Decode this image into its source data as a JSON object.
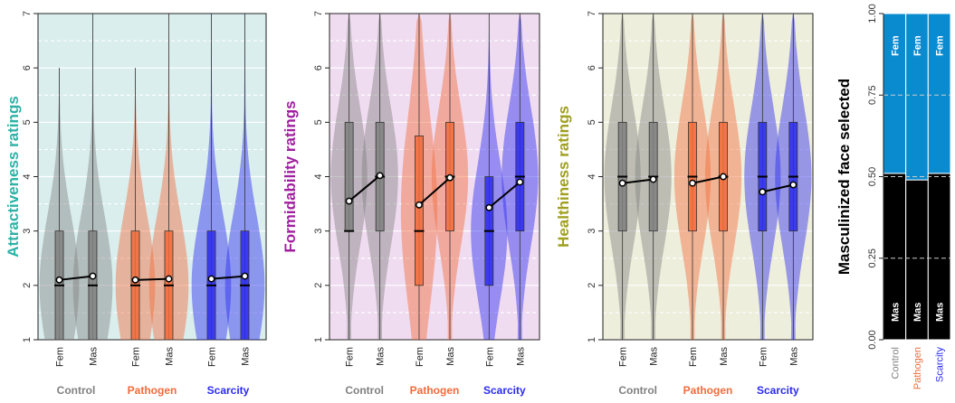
{
  "colors": {
    "control": "#808080",
    "pathogen": "#f26b3a",
    "scarcity": "#2b2bf0",
    "panel1_bg": "#daeeee",
    "panel2_bg": "#f0dcf0",
    "panel3_bg": "#eeeedc",
    "panel1_label": "#2eb2a6",
    "panel2_label": "#a020a0",
    "panel3_label": "#a0a020",
    "bar_fem": "#0a8bd0",
    "bar_mas": "#000000"
  },
  "chart_data": [
    {
      "type": "violin",
      "ylabel": "Attractiveness ratings",
      "ylim": [
        1,
        7
      ],
      "yticks": [
        "1",
        "2",
        "3",
        "4",
        "5",
        "6",
        "7"
      ],
      "categories": [
        "Fem",
        "Mas"
      ],
      "groups": [
        "Control",
        "Pathogen",
        "Scarcity"
      ],
      "series": [
        {
          "name": "Control",
          "fem": {
            "mean": 2.1,
            "median": 2,
            "q1": 1,
            "q3": 3,
            "max": 6
          },
          "mas": {
            "mean": 2.17,
            "median": 2,
            "q1": 1,
            "q3": 3,
            "max": 7
          }
        },
        {
          "name": "Pathogen",
          "fem": {
            "mean": 2.1,
            "median": 2,
            "q1": 1,
            "q3": 3,
            "max": 6
          },
          "mas": {
            "mean": 2.12,
            "median": 2,
            "q1": 1,
            "q3": 3,
            "max": 7
          }
        },
        {
          "name": "Scarcity",
          "fem": {
            "mean": 2.12,
            "median": 2,
            "q1": 1,
            "q3": 3,
            "max": 7
          },
          "mas": {
            "mean": 2.17,
            "median": 2,
            "q1": 1,
            "q3": 3,
            "max": 7
          }
        }
      ]
    },
    {
      "type": "violin",
      "ylabel": "Formidability ratings",
      "ylim": [
        1,
        7
      ],
      "yticks": [
        "1",
        "2",
        "3",
        "4",
        "5",
        "6",
        "7"
      ],
      "categories": [
        "Fem",
        "Mas"
      ],
      "groups": [
        "Control",
        "Pathogen",
        "Scarcity"
      ],
      "series": [
        {
          "name": "Control",
          "fem": {
            "mean": 3.55,
            "median": 3,
            "q1": 3,
            "q3": 5,
            "max": 7
          },
          "mas": {
            "mean": 4.02,
            "median": 4,
            "q1": 3,
            "q3": 5,
            "max": 7
          }
        },
        {
          "name": "Pathogen",
          "fem": {
            "mean": 3.48,
            "median": 3,
            "q1": 2,
            "q3": 4.75,
            "max": 7
          },
          "mas": {
            "mean": 3.98,
            "median": 4,
            "q1": 3,
            "q3": 5,
            "max": 7
          }
        },
        {
          "name": "Scarcity",
          "fem": {
            "mean": 3.43,
            "median": 3,
            "q1": 2,
            "q3": 4,
            "max": 7
          },
          "mas": {
            "mean": 3.9,
            "median": 4,
            "q1": 3,
            "q3": 5,
            "max": 7
          }
        }
      ]
    },
    {
      "type": "violin",
      "ylabel": "Healthiness ratings",
      "ylim": [
        1,
        7
      ],
      "yticks": [
        "1",
        "2",
        "3",
        "4",
        "5",
        "6",
        "7"
      ],
      "categories": [
        "Fem",
        "Mas"
      ],
      "groups": [
        "Control",
        "Pathogen",
        "Scarcity"
      ],
      "series": [
        {
          "name": "Control",
          "fem": {
            "mean": 3.88,
            "median": 4,
            "q1": 3,
            "q3": 5,
            "max": 7
          },
          "mas": {
            "mean": 3.95,
            "median": 4,
            "q1": 3,
            "q3": 5,
            "max": 7
          }
        },
        {
          "name": "Pathogen",
          "fem": {
            "mean": 3.88,
            "median": 4,
            "q1": 3,
            "q3": 5,
            "max": 7
          },
          "mas": {
            "mean": 4.0,
            "median": 4,
            "q1": 3,
            "q3": 5,
            "max": 7
          }
        },
        {
          "name": "Scarcity",
          "fem": {
            "mean": 3.72,
            "median": 4,
            "q1": 3,
            "q3": 5,
            "max": 7
          },
          "mas": {
            "mean": 3.85,
            "median": 4,
            "q1": 3,
            "q3": 5,
            "max": 7
          }
        }
      ]
    },
    {
      "type": "bar",
      "stacked": true,
      "ylabel": "Masculinized face selected",
      "ylim": [
        0,
        1
      ],
      "yticks": [
        "0.00",
        "0.25",
        "0.50",
        "0.75",
        "1.00"
      ],
      "categories": [
        "Control",
        "Pathogen",
        "Scarcity"
      ],
      "series": [
        {
          "name": "Mas",
          "values": [
            0.51,
            0.49,
            0.51
          ]
        },
        {
          "name": "Fem",
          "values": [
            0.49,
            0.51,
            0.49
          ]
        }
      ]
    }
  ]
}
